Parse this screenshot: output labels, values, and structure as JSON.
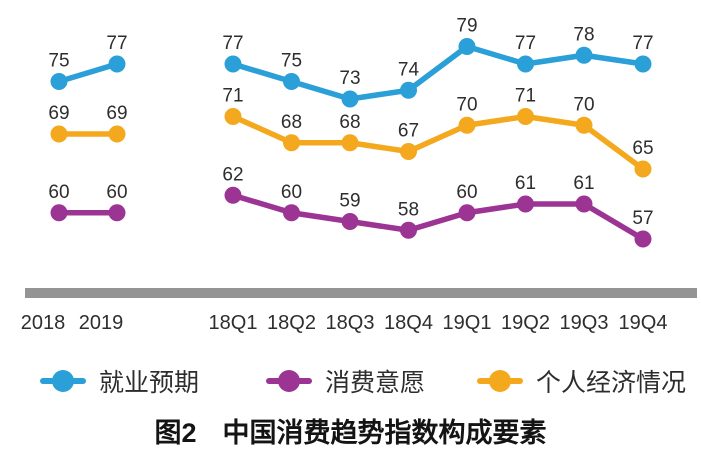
{
  "chart_data": {
    "type": "line",
    "title": "图2　中国消费趋势指数构成要素",
    "x_groups": [
      {
        "key": "annual",
        "categories": [
          "2018",
          "2019"
        ]
      },
      {
        "key": "quarterly",
        "categories": [
          "18Q1",
          "18Q2",
          "18Q3",
          "18Q4",
          "19Q1",
          "19Q2",
          "19Q3",
          "19Q4"
        ]
      }
    ],
    "series": [
      {
        "key": "employment-outlook",
        "name": "就业预期",
        "color": "#2B9FD8",
        "annual": [
          75,
          77
        ],
        "quarterly": [
          77,
          75,
          73,
          74,
          79,
          77,
          78,
          77
        ]
      },
      {
        "key": "consumption-willingness",
        "name": "消费意愿",
        "color": "#9C3494",
        "annual": [
          60,
          60
        ],
        "quarterly": [
          62,
          60,
          59,
          58,
          60,
          61,
          61,
          57
        ]
      },
      {
        "key": "personal-economy",
        "name": "个人经济情况",
        "color": "#F4A81D",
        "annual": [
          69,
          69
        ],
        "quarterly": [
          71,
          68,
          68,
          67,
          70,
          71,
          70,
          65
        ]
      }
    ],
    "value_labels": true,
    "ylim": [
      55,
      82
    ],
    "legend_position": "bottom",
    "grid": false,
    "colors": {
      "value_text": "#2e2e2e",
      "tick_text": "#2e2e2e",
      "divider_bar": "#949494"
    }
  },
  "caption": {
    "figure_label": "图2",
    "text": "中国消费趋势指数构成要素"
  }
}
